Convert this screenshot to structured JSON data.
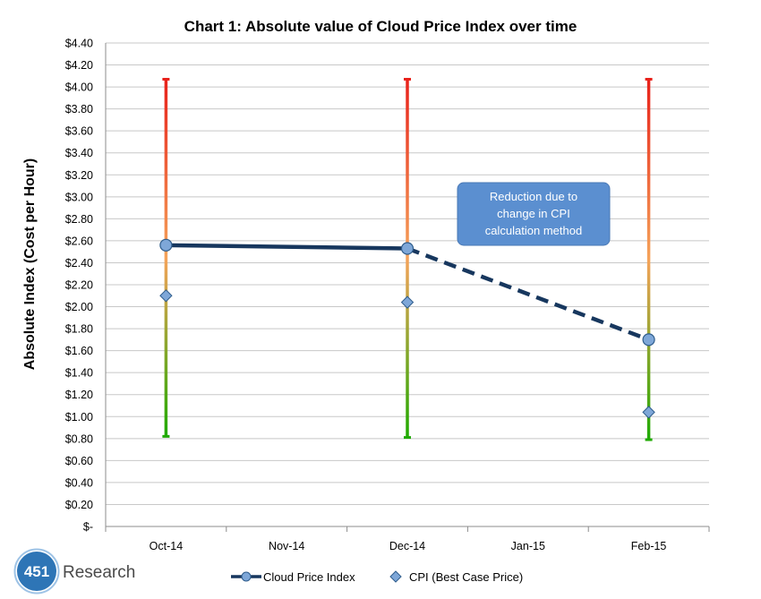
{
  "chart_data": {
    "type": "line",
    "title": "Chart 1: Absolute value of Cloud Price Index over time",
    "xlabel": "",
    "ylabel": "Absolute Index (Cost per Hour)",
    "categories": [
      "Oct-14",
      "Nov-14",
      "Dec-14",
      "Jan-15",
      "Feb-15"
    ],
    "y_ticks": [
      "$-",
      "$0.20",
      "$0.40",
      "$0.60",
      "$0.80",
      "$1.00",
      "$1.20",
      "$1.40",
      "$1.60",
      "$1.80",
      "$2.00",
      "$2.20",
      "$2.40",
      "$2.60",
      "$2.80",
      "$3.00",
      "$3.20",
      "$3.40",
      "$3.60",
      "$3.80",
      "$4.00",
      "$4.20",
      "$4.40"
    ],
    "ylim": [
      0,
      4.4
    ],
    "grid": true,
    "legend_position": "bottom",
    "series": [
      {
        "name": "Cloud Price Index",
        "type": "line",
        "color": "#17375e",
        "points": [
          {
            "x": "Oct-14",
            "y": 2.56
          },
          {
            "x": "Dec-14",
            "y": 2.53
          },
          {
            "x": "Feb-15",
            "y": 1.7
          }
        ],
        "dashed_from_index": 1
      },
      {
        "name": "CPI (Best Case Price)",
        "type": "scatter",
        "marker": "diamond",
        "color": "#7ea7d8",
        "points": [
          {
            "x": "Oct-14",
            "y": 2.1
          },
          {
            "x": "Dec-14",
            "y": 2.04
          },
          {
            "x": "Feb-15",
            "y": 1.04
          }
        ]
      }
    ],
    "ranges": [
      {
        "x": "Oct-14",
        "low": 0.82,
        "high": 4.07
      },
      {
        "x": "Dec-14",
        "low": 0.81,
        "high": 4.07
      },
      {
        "x": "Feb-15",
        "low": 0.79,
        "high": 4.07
      }
    ],
    "range_colors": {
      "low": "#1faa00",
      "mid": "#f5a35a",
      "high": "#e8221b"
    },
    "annotation": {
      "text": [
        "Reduction due to",
        "change in CPI",
        "calculation method"
      ],
      "color": "#5b8fd0"
    }
  },
  "logo": {
    "number": "451",
    "word": "Research",
    "color": "#2e75b6"
  }
}
